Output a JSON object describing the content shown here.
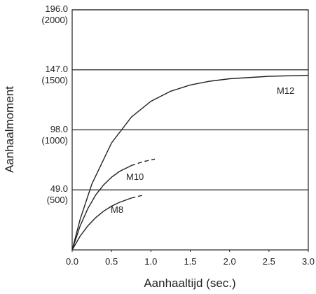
{
  "chart_data": {
    "type": "line",
    "xlabel": "Aanhaaltijd (sec.)",
    "ylabel": "Aanhaalmoment",
    "xlim": [
      0,
      3
    ],
    "ylim": [
      0,
      196
    ],
    "xticks": [
      {
        "value": 0,
        "label": "0.0"
      },
      {
        "value": 0.5,
        "label": "0.5"
      },
      {
        "value": 1,
        "label": "1.0"
      },
      {
        "value": 1.5,
        "label": "1.5"
      },
      {
        "value": 2,
        "label": "2.0"
      },
      {
        "value": 2.5,
        "label": "2.5"
      },
      {
        "value": 3,
        "label": "3.0"
      }
    ],
    "yticks": [
      {
        "value": 49,
        "label": "49.0\n(500)"
      },
      {
        "value": 98,
        "label": "98.0\n(1000)"
      },
      {
        "value": 147,
        "label": "147.0\n(1500)"
      },
      {
        "value": 196,
        "label": "196.0\n(2000)"
      }
    ],
    "grid": true,
    "series": [
      {
        "name": "M12",
        "color": "#222222",
        "x": [
          0,
          0.1,
          0.25,
          0.5,
          0.75,
          1,
          1.25,
          1.5,
          1.75,
          2,
          2.5,
          3
        ],
        "values": [
          0,
          24.6,
          53.8,
          87.3,
          108.3,
          121.3,
          129.5,
          134.6,
          137.7,
          139.7,
          141.7,
          142.5
        ],
        "dashed_from": null
      },
      {
        "name": "M10",
        "color": "#222222",
        "x": [
          0,
          0.1,
          0.2,
          0.3,
          0.4,
          0.5,
          0.6,
          0.75,
          0.9,
          1.05
        ],
        "values": [
          0,
          19.4,
          33.9,
          44.9,
          53.1,
          59.3,
          64,
          68.8,
          72,
          74.1
        ],
        "dashed_from": 7
      },
      {
        "name": "M8",
        "color": "#222222",
        "x": [
          0,
          0.1,
          0.2,
          0.3,
          0.4,
          0.5,
          0.6,
          0.75,
          0.9
        ],
        "values": [
          0,
          11.1,
          19.7,
          26.4,
          31.6,
          35.7,
          38.8,
          42.3,
          44.7
        ],
        "dashed_from": 7
      }
    ]
  }
}
